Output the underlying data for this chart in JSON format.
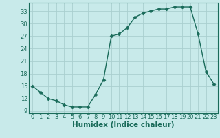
{
  "x": [
    0,
    1,
    2,
    3,
    4,
    5,
    6,
    7,
    8,
    9,
    10,
    11,
    12,
    13,
    14,
    15,
    16,
    17,
    18,
    19,
    20,
    21,
    22,
    23
  ],
  "y": [
    15,
    13.5,
    12,
    11.5,
    10.5,
    10,
    10,
    10,
    13,
    16.5,
    27,
    27.5,
    29,
    31.5,
    32.5,
    33,
    33.5,
    33.5,
    34,
    34,
    34,
    27.5,
    18.5,
    15.5
  ],
  "line_color": "#1a6b5a",
  "marker": "D",
  "marker_size": 2.5,
  "bg_color": "#c8eaea",
  "grid_color": "#aacfcf",
  "xlabel": "Humidex (Indice chaleur)",
  "xlim": [
    -0.5,
    23.5
  ],
  "ylim": [
    8.5,
    35
  ],
  "yticks": [
    9,
    12,
    15,
    18,
    21,
    24,
    27,
    30,
    33
  ],
  "xticks": [
    0,
    1,
    2,
    3,
    4,
    5,
    6,
    7,
    8,
    9,
    10,
    11,
    12,
    13,
    14,
    15,
    16,
    17,
    18,
    19,
    20,
    21,
    22,
    23
  ],
  "tick_color": "#1a6b5a",
  "tick_fontsize": 6,
  "xlabel_fontsize": 7.5
}
